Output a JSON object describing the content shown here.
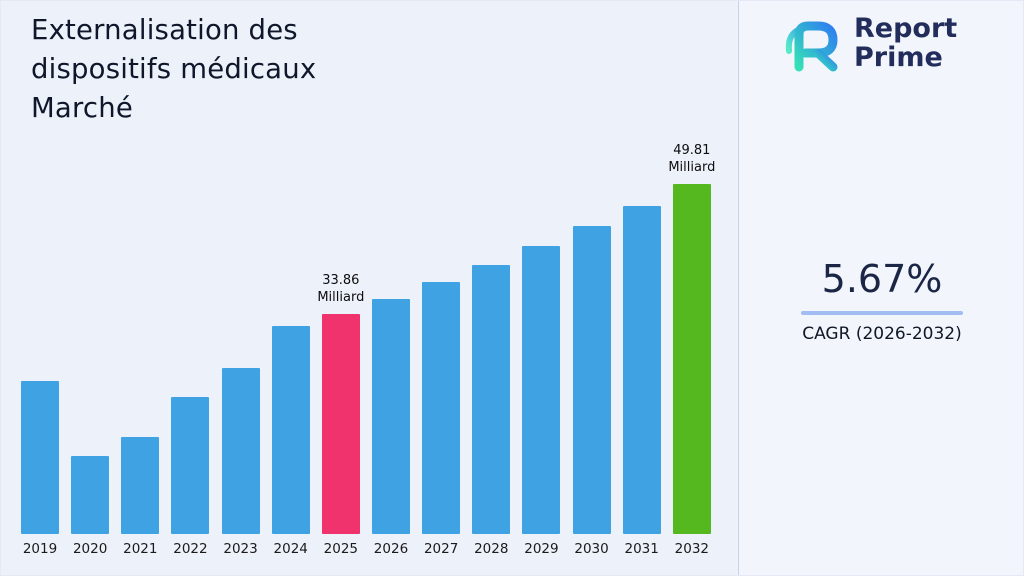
{
  "title": {
    "lines": [
      "Externalisation des",
      "dispositifs médicaux",
      "Marché"
    ]
  },
  "brand": {
    "name_line1": "Report",
    "name_line2": "Prime"
  },
  "stats": {
    "cagr_value": "5.67%",
    "cagr_label": "CAGR (2026-2032)"
  },
  "colors": {
    "background": "#edf1fa",
    "panel": "#f2f6fc",
    "divider": "#c9d3e8",
    "title_text": "#10172b",
    "brand_text": "#232d5b",
    "underline": "#a2bdf2",
    "logo_teal": "#35e0b8",
    "logo_blue": "#2e7ef0"
  },
  "chart_data": {
    "type": "bar",
    "title": "Externalisation des dispositifs médicaux Marché",
    "categories": [
      "2019",
      "2020",
      "2021",
      "2022",
      "2023",
      "2024",
      "2025",
      "2026",
      "2027",
      "2028",
      "2029",
      "2030",
      "2031",
      "2032"
    ],
    "values": [
      25.7,
      16.5,
      18.9,
      23.7,
      27.3,
      32.4,
      33.86,
      35.78,
      37.81,
      39.95,
      42.22,
      44.61,
      47.14,
      49.81
    ],
    "unit": "Milliard",
    "xlabel": "",
    "ylabel": "",
    "ylim": [
      7,
      52
    ],
    "grid": false,
    "legend": "none",
    "bar_colors": {
      "default": "#3fa2e2",
      "2025": "#f0336d",
      "2032": "#56b81f"
    },
    "annotations": [
      {
        "category": "2025",
        "lines": [
          "33.86",
          "Milliard"
        ]
      },
      {
        "category": "2032",
        "lines": [
          "49.81",
          "Milliard"
        ]
      }
    ]
  }
}
